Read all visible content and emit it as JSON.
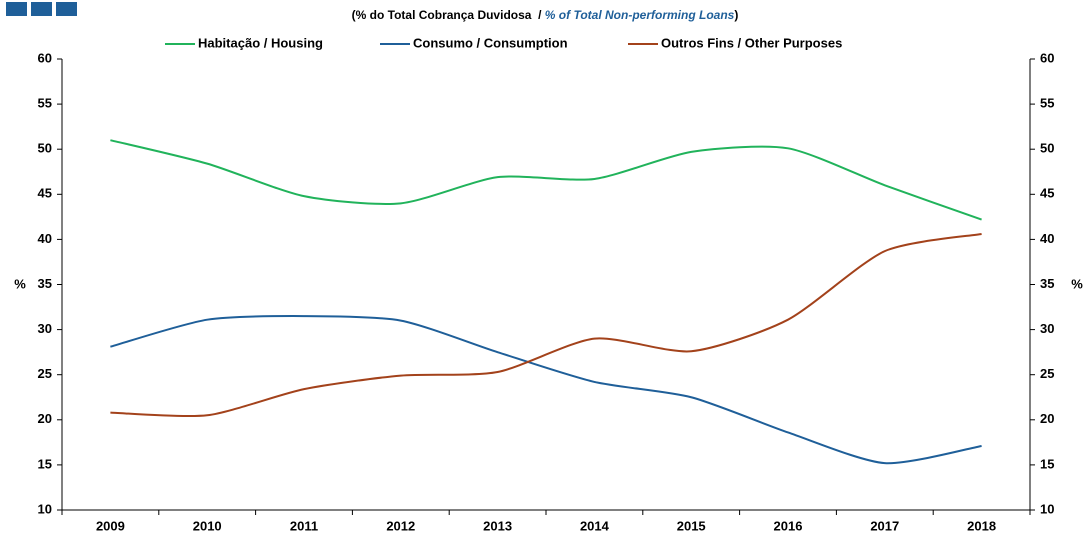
{
  "chart_data": {
    "type": "line",
    "title_parts": [
      "(% do Total Cobrança Duvidosa  / ",
      "% of Total Non-performing Loans",
      ")"
    ],
    "ylabel": "%",
    "y2label": "%",
    "categories": [
      "2009",
      "2010",
      "2011",
      "2012",
      "2013",
      "2014",
      "2015",
      "2016",
      "2017",
      "2018"
    ],
    "series": [
      {
        "name": "Habitação / Housing",
        "color": "#21b35b",
        "values": [
          51.0,
          48.4,
          44.8,
          44.0,
          46.9,
          46.7,
          49.7,
          50.1,
          46.0,
          42.2
        ]
      },
      {
        "name": "Consumo / Consumption",
        "color": "#1f5f99",
        "values": [
          28.1,
          31.1,
          31.5,
          31.0,
          27.5,
          24.2,
          22.5,
          18.6,
          15.2,
          17.1
        ]
      },
      {
        "name": "Outros Fins / Other Purposes",
        "color": "#a3421b",
        "values": [
          20.8,
          20.5,
          23.4,
          24.9,
          25.3,
          29.0,
          27.6,
          31.1,
          38.7,
          40.6
        ]
      }
    ],
    "ylim": [
      10,
      60
    ],
    "yticks": [
      10,
      15,
      20,
      25,
      30,
      35,
      40,
      45,
      50,
      55,
      60
    ],
    "y2lim": [
      10,
      60
    ],
    "y2ticks": [
      10,
      15,
      20,
      25,
      30,
      35,
      40,
      45,
      50,
      55,
      60
    ],
    "grid": false
  }
}
